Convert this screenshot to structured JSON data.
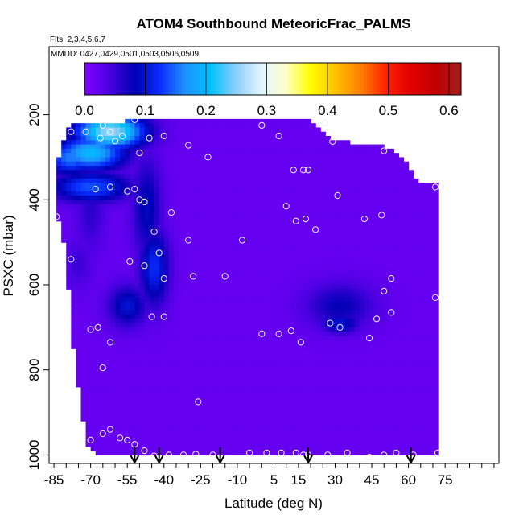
{
  "chart_data": {
    "type": "heatmap",
    "title": "ATOM4 Southbound MeteoricFrac_PALMS",
    "subtitle_flights": "Flts: 2,3,4,5,6,7",
    "subtitle_dates": "MMDD: 0427,0429,0501,0503,0506,0509",
    "xlabel": "Latitude (deg N)",
    "ylabel": "PSXC (mbar)",
    "xlim": [
      -87,
      97
    ],
    "ylim": [
      1020,
      40
    ],
    "x_ticks": [
      -85,
      -70,
      -55,
      -40,
      -25,
      -10,
      5,
      15,
      30,
      45,
      60,
      75
    ],
    "x_tick_labels": [
      "-85",
      "-70",
      "-55",
      "-40",
      "-25",
      "-10",
      "5",
      "15",
      "30",
      "45",
      "60",
      "75"
    ],
    "y_ticks": [
      200,
      400,
      600,
      800,
      1000
    ],
    "y_tick_labels": [
      "200",
      "400",
      "600",
      "800",
      "1000"
    ],
    "colorbar": {
      "min": 0.0,
      "max": 0.62,
      "ticks": [
        0.0,
        0.1,
        0.2,
        0.3,
        0.4,
        0.5,
        0.6
      ],
      "tick_labels": [
        "0.0",
        "0.1",
        "0.2",
        "0.3",
        "0.4",
        "0.5",
        "0.6"
      ],
      "colors": [
        "#7f00ff",
        "#4a00e0",
        "#0000b4",
        "#0a2cff",
        "#1e90ff",
        "#00bfff",
        "#87cefa",
        "#e0f4ff",
        "#ffffcc",
        "#ffff00",
        "#ffc000",
        "#ff8000",
        "#ff2000",
        "#e00000",
        "#c00000",
        "#a02020"
      ]
    },
    "background_value": 0.02,
    "envelope": [
      [
        -84,
        320,
        420
      ],
      [
        -82,
        280,
        480
      ],
      [
        -80,
        240,
        520
      ],
      [
        -78,
        220,
        700
      ],
      [
        -76,
        220,
        800
      ],
      [
        -74,
        220,
        880
      ],
      [
        -72,
        220,
        960
      ],
      [
        -70,
        220,
        990
      ],
      [
        -65,
        220,
        1000
      ],
      [
        -60,
        220,
        1000
      ],
      [
        -55,
        215,
        1000
      ],
      [
        -50,
        210,
        1000
      ],
      [
        -20,
        210,
        1000
      ],
      [
        0,
        210,
        1000
      ],
      [
        20,
        210,
        1000
      ],
      [
        28,
        260,
        1000
      ],
      [
        50,
        275,
        1000
      ],
      [
        58,
        300,
        1000
      ],
      [
        64,
        360,
        1000
      ],
      [
        70,
        360,
        1000
      ],
      [
        72,
        360,
        1000
      ]
    ],
    "field": [
      {
        "lat": -62,
        "p": 240,
        "w_lat": 14,
        "w_p": 40,
        "v": 0.26
      },
      {
        "lat": -70,
        "p": 290,
        "w_lat": 14,
        "w_p": 40,
        "v": 0.2
      },
      {
        "lat": -78,
        "p": 300,
        "w_lat": 10,
        "w_p": 40,
        "v": 0.16
      },
      {
        "lat": -70,
        "p": 370,
        "w_lat": 16,
        "w_p": 35,
        "v": 0.14
      },
      {
        "lat": -52,
        "p": 190,
        "w_lat": 4,
        "w_p": 30,
        "v": 0.09
      },
      {
        "lat": -47,
        "p": 420,
        "w_lat": 6,
        "w_p": 120,
        "v": 0.09
      },
      {
        "lat": -44,
        "p": 560,
        "w_lat": 6,
        "w_p": 90,
        "v": 0.12
      },
      {
        "lat": -55,
        "p": 650,
        "w_lat": 8,
        "w_p": 50,
        "v": 0.1
      },
      {
        "lat": -70,
        "p": 420,
        "w_lat": 6,
        "w_p": 100,
        "v": 0.06
      },
      {
        "lat": -75,
        "p": 550,
        "w_lat": 6,
        "w_p": 60,
        "v": 0.05
      },
      {
        "lat": 32,
        "p": 650,
        "w_lat": 14,
        "w_p": 55,
        "v": 0.08
      },
      {
        "lat": 32,
        "p": 690,
        "w_lat": 8,
        "w_p": 25,
        "v": 0.1
      }
    ],
    "observation_points": [
      {
        "lat": -84,
        "p": 440
      },
      {
        "lat": -78,
        "p": 240
      },
      {
        "lat": -72,
        "p": 240
      },
      {
        "lat": -65,
        "p": 225
      },
      {
        "lat": -62,
        "p": 240
      },
      {
        "lat": -66,
        "p": 255
      },
      {
        "lat": -60,
        "p": 262
      },
      {
        "lat": -57,
        "p": 250
      },
      {
        "lat": -52,
        "p": 212
      },
      {
        "lat": -46,
        "p": 255
      },
      {
        "lat": -40,
        "p": 250
      },
      {
        "lat": -30,
        "p": 272
      },
      {
        "lat": -22,
        "p": 300
      },
      {
        "lat": -50,
        "p": 290
      },
      {
        "lat": 0,
        "p": 225
      },
      {
        "lat": 7,
        "p": 250
      },
      {
        "lat": 26,
        "p": 220
      },
      {
        "lat": 29,
        "p": 263
      },
      {
        "lat": 50,
        "p": 285
      },
      {
        "lat": -68,
        "p": 375
      },
      {
        "lat": -62,
        "p": 370
      },
      {
        "lat": -55,
        "p": 380
      },
      {
        "lat": -48,
        "p": 405
      },
      {
        "lat": -50,
        "p": 400
      },
      {
        "lat": -52,
        "p": 375
      },
      {
        "lat": -37,
        "p": 430
      },
      {
        "lat": 13,
        "p": 330
      },
      {
        "lat": 17,
        "p": 330
      },
      {
        "lat": 19,
        "p": 330
      },
      {
        "lat": 31,
        "p": 390
      },
      {
        "lat": 10,
        "p": 415
      },
      {
        "lat": 14,
        "p": 450
      },
      {
        "lat": 18,
        "p": 445
      },
      {
        "lat": 22,
        "p": 470
      },
      {
        "lat": 42,
        "p": 445
      },
      {
        "lat": 49,
        "p": 436
      },
      {
        "lat": -30,
        "p": 495
      },
      {
        "lat": -8,
        "p": 495
      },
      {
        "lat": -44,
        "p": 475
      },
      {
        "lat": -42,
        "p": 525
      },
      {
        "lat": -78,
        "p": 540
      },
      {
        "lat": -54,
        "p": 545
      },
      {
        "lat": -48,
        "p": 555
      },
      {
        "lat": -28,
        "p": 580
      },
      {
        "lat": -15,
        "p": 580
      },
      {
        "lat": -40,
        "p": 585
      },
      {
        "lat": 53,
        "p": 585
      },
      {
        "lat": 50,
        "p": 615
      },
      {
        "lat": 28,
        "p": 690
      },
      {
        "lat": 32,
        "p": 700
      },
      {
        "lat": 47,
        "p": 680
      },
      {
        "lat": 53,
        "p": 665
      },
      {
        "lat": -67,
        "p": 700
      },
      {
        "lat": -70,
        "p": 705
      },
      {
        "lat": -62,
        "p": 735
      },
      {
        "lat": -45,
        "p": 675
      },
      {
        "lat": -40,
        "p": 675
      },
      {
        "lat": -65,
        "p": 795
      },
      {
        "lat": 0,
        "p": 715
      },
      {
        "lat": 7,
        "p": 715
      },
      {
        "lat": 12,
        "p": 708
      },
      {
        "lat": 16,
        "p": 735
      },
      {
        "lat": 44,
        "p": 725
      },
      {
        "lat": 71,
        "p": 630
      },
      {
        "lat": 71,
        "p": 370
      },
      {
        "lat": -26,
        "p": 875
      },
      {
        "lat": -70,
        "p": 965
      },
      {
        "lat": -65,
        "p": 950
      },
      {
        "lat": -62,
        "p": 940
      },
      {
        "lat": -58,
        "p": 960
      },
      {
        "lat": -55,
        "p": 965
      },
      {
        "lat": -52,
        "p": 975
      },
      {
        "lat": -48,
        "p": 990
      },
      {
        "lat": -44,
        "p": 1002
      },
      {
        "lat": -38,
        "p": 1000
      },
      {
        "lat": -32,
        "p": 1000
      },
      {
        "lat": -27,
        "p": 998
      },
      {
        "lat": -20,
        "p": 1000
      },
      {
        "lat": -5,
        "p": 995
      },
      {
        "lat": 2,
        "p": 995
      },
      {
        "lat": 8,
        "p": 995
      },
      {
        "lat": 14,
        "p": 995
      },
      {
        "lat": 17,
        "p": 1000
      },
      {
        "lat": 19,
        "p": 1000
      },
      {
        "lat": 27,
        "p": 1000
      },
      {
        "lat": 35,
        "p": 995
      },
      {
        "lat": 44,
        "p": 1005
      },
      {
        "lat": 50,
        "p": 1000
      },
      {
        "lat": 55,
        "p": 995
      },
      {
        "lat": 62,
        "p": 1000
      },
      {
        "lat": 72,
        "p": 995
      }
    ],
    "arrow_latitudes": [
      -52,
      -42,
      -17,
      19,
      61
    ]
  }
}
